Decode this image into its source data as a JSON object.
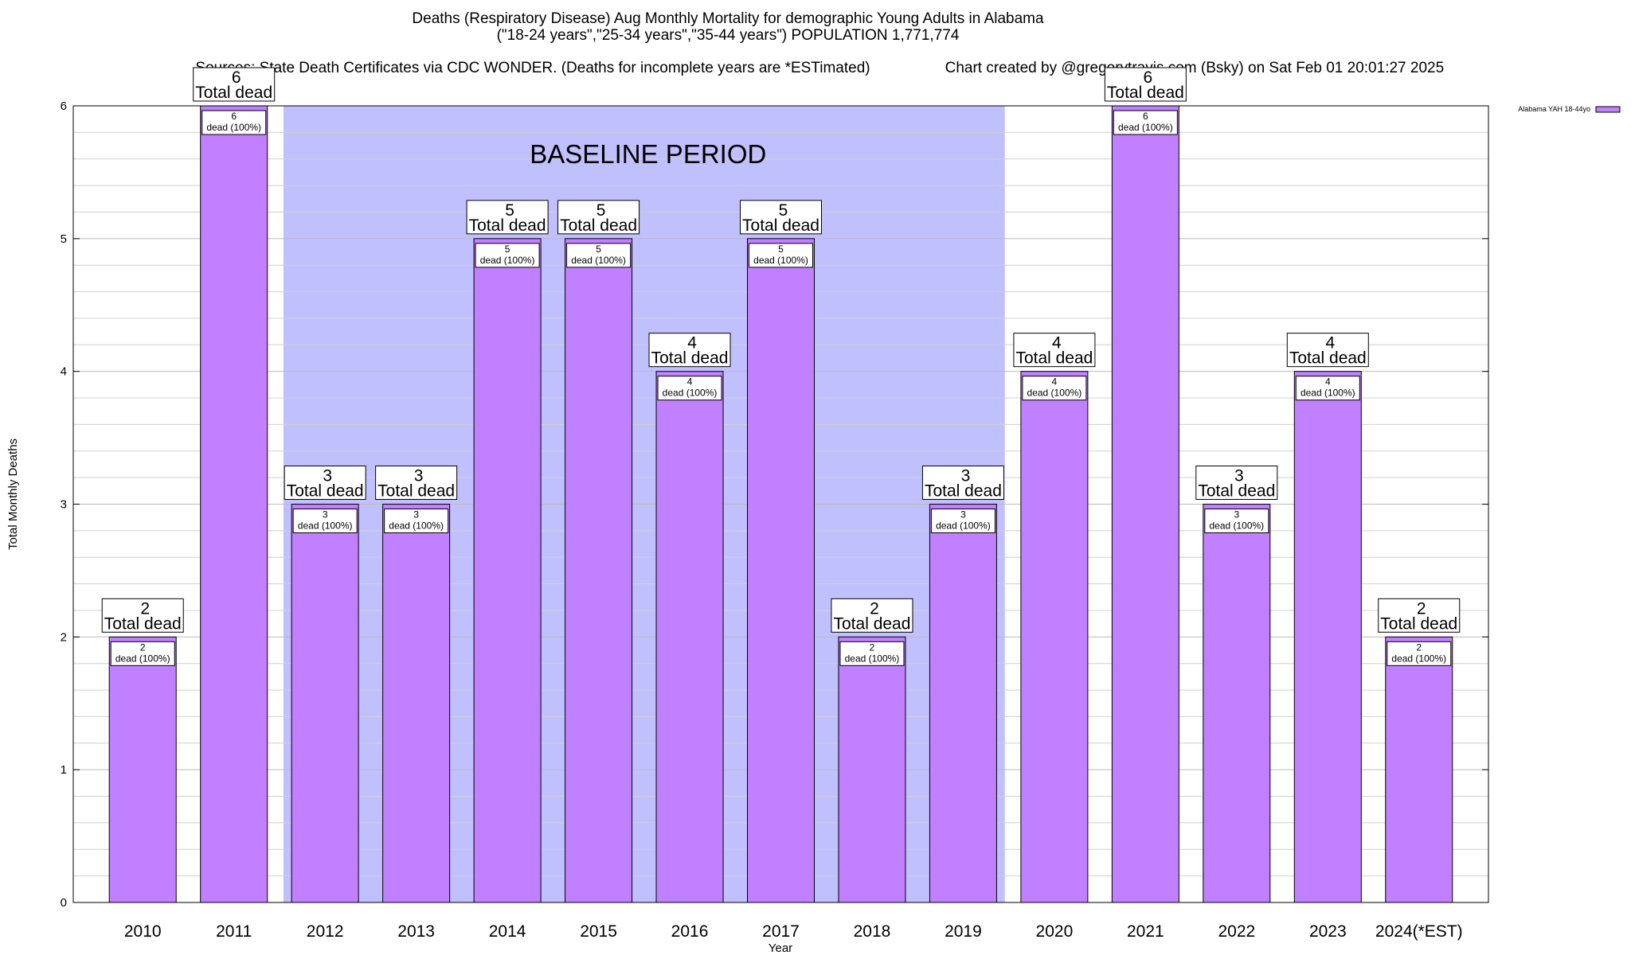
{
  "chart_data": {
    "type": "bar",
    "title": "Deaths (Respiratory Disease) Aug Monthly Mortality for demographic Young Adults in Alabama",
    "subtitle": "(\"18-24 years\",\"25-34 years\",\"35-44 years\") POPULATION 1,771,774",
    "sources": "Sources: State Death Certificates via CDC WONDER. (Deaths for incomplete years are *ESTimated)",
    "credit": "Chart created by @gregorytravis.com (Bsky) on Sat Feb 01 20:01:27 2025",
    "xlabel": "Year",
    "ylabel": "Total Monthly Deaths",
    "ylim": [
      0,
      6
    ],
    "yticks": [
      "0",
      "1",
      "2",
      "3",
      "4",
      "5",
      "6"
    ],
    "grid": true,
    "categories": [
      "2010",
      "2011",
      "2012",
      "2013",
      "2014",
      "2015",
      "2016",
      "2017",
      "2018",
      "2019",
      "2020",
      "2021",
      "2022",
      "2023",
      "2024(*EST)"
    ],
    "series": [
      {
        "name": "Alabama YAH 18-44yo",
        "color": "#c080ff",
        "values": [
          2,
          6,
          3,
          3,
          5,
          5,
          4,
          5,
          2,
          3,
          4,
          6,
          3,
          4,
          2
        ]
      }
    ],
    "bar_top_labels": [
      "2",
      "6",
      "3",
      "3",
      "5",
      "5",
      "4",
      "5",
      "2",
      "3",
      "4",
      "6",
      "3",
      "4",
      "2"
    ],
    "bar_top_suffix": "Total dead",
    "bar_inner_labels": [
      "2",
      "6",
      "3",
      "3",
      "5",
      "5",
      "4",
      "5",
      "2",
      "3",
      "4",
      "6",
      "3",
      "4",
      "2"
    ],
    "bar_inner_suffix": "dead (100%)",
    "baseline_region": {
      "label": "BASELINE PERIOD",
      "start": "2012",
      "end": "2019",
      "color": "#c0c0ff"
    },
    "legend": {
      "position": "top-right",
      "label": "Alabama YAH 18-44yo"
    }
  }
}
